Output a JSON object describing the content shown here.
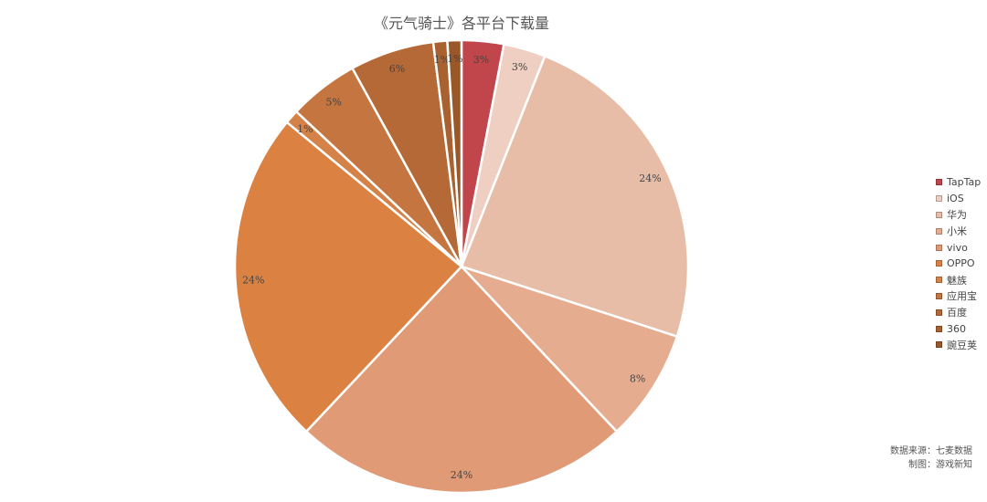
{
  "chart_data": {
    "type": "pie",
    "title": "《元气骑士》各平台下载量",
    "slices": [
      {
        "name": "TapTap",
        "value": 3,
        "label": "3%",
        "color": "#C0464C"
      },
      {
        "name": "iOS",
        "value": 3,
        "label": "3%",
        "color": "#EECFC2"
      },
      {
        "name": "华为",
        "value": 24,
        "label": "24%",
        "color": "#E8BDA7"
      },
      {
        "name": "小米",
        "value": 8,
        "label": "8%",
        "color": "#E5AC90"
      },
      {
        "name": "vivo",
        "value": 24,
        "label": "24%",
        "color": "#E09A76"
      },
      {
        "name": "OPPO",
        "value": 24,
        "label": "24%",
        "color": "#DB8243"
      },
      {
        "name": "魅族",
        "value": 1,
        "label": "1%",
        "color": "#D48247"
      },
      {
        "name": "应用宝",
        "value": 5,
        "label": "5%",
        "color": "#C57540"
      },
      {
        "name": "百度",
        "value": 6,
        "label": "6%",
        "color": "#B46937"
      },
      {
        "name": "360",
        "value": 1,
        "label": "1%",
        "color": "#A8612F"
      },
      {
        "name": "豌豆荚",
        "value": 1,
        "label": "1%",
        "color": "#9A5828"
      }
    ],
    "legend_position": "right"
  },
  "source": {
    "data_source": "数据来源：七麦数据",
    "made_by": "制图：游戏新知"
  }
}
